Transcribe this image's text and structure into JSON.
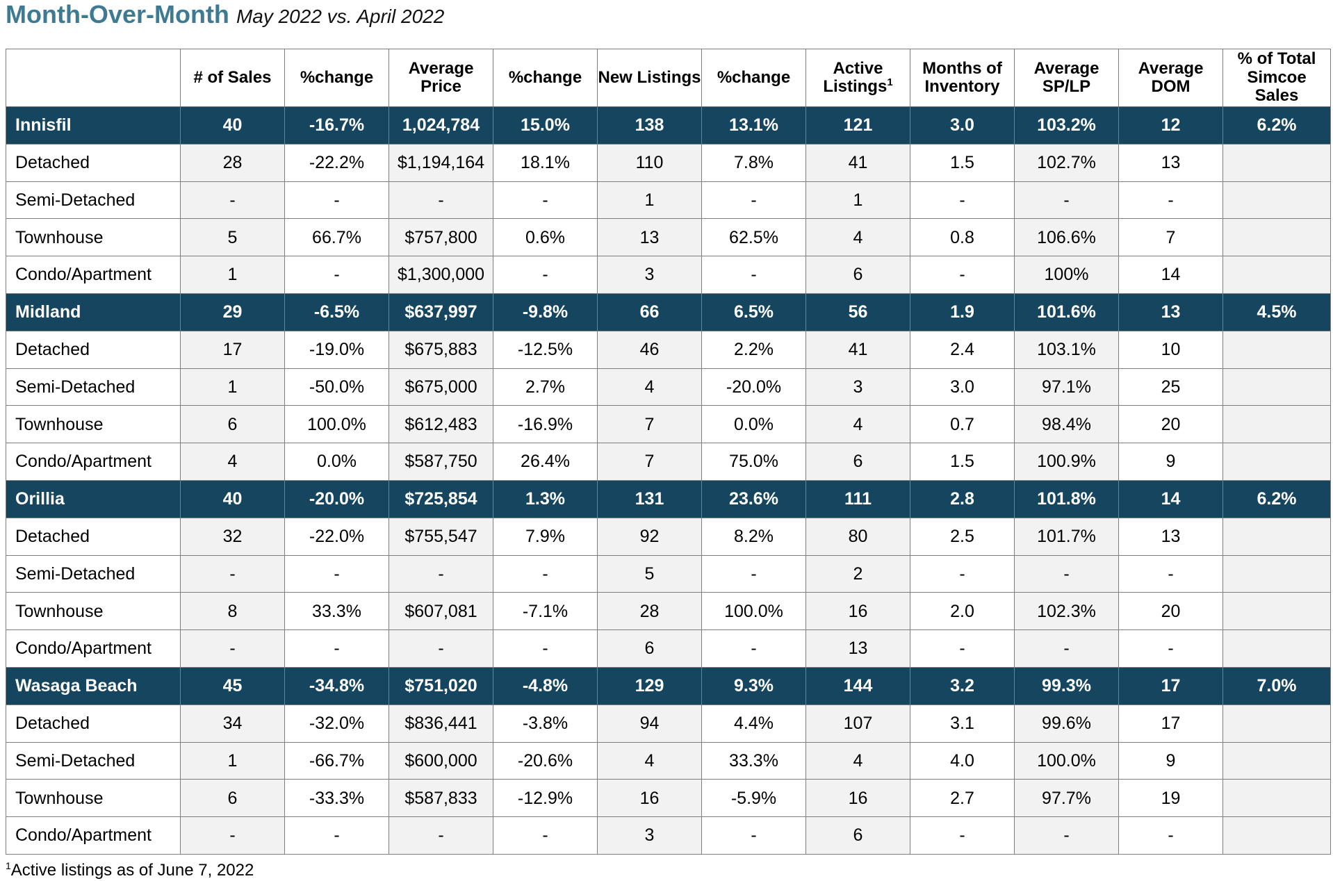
{
  "title": {
    "main": "Month-Over-Month",
    "sub": "May 2022 vs. April 2022"
  },
  "colors": {
    "title": "#3f7a93",
    "region_row_bg": "#16465f",
    "shaded_column_bg": "#f2f2f2"
  },
  "headers": [
    "",
    "# of Sales",
    "%change",
    "Average Price",
    "%change",
    "New Listings",
    "%change",
    "Active Listings",
    "Months of Inventory",
    "Average SP/LP",
    "Average DOM",
    "% of Total Simcoe Sales"
  ],
  "header_footnote_marker": "1",
  "regions": [
    {
      "summary": [
        "Innisfil",
        "40",
        "-16.7%",
        "1,024,784",
        "15.0%",
        "138",
        "13.1%",
        "121",
        "3.0",
        "103.2%",
        "12",
        "6.2%"
      ],
      "types": [
        [
          "Detached",
          "28",
          "-22.2%",
          "$1,194,164",
          "18.1%",
          "110",
          "7.8%",
          "41",
          "1.5",
          "102.7%",
          "13",
          ""
        ],
        [
          "Semi-Detached",
          "-",
          "-",
          "-",
          "-",
          "1",
          "-",
          "1",
          "-",
          "-",
          "-",
          ""
        ],
        [
          "Townhouse",
          "5",
          "66.7%",
          "$757,800",
          "0.6%",
          "13",
          "62.5%",
          "4",
          "0.8",
          "106.6%",
          "7",
          ""
        ],
        [
          "Condo/Apartment",
          "1",
          "-",
          "$1,300,000",
          "-",
          "3",
          "-",
          "6",
          "-",
          "100%",
          "14",
          ""
        ]
      ]
    },
    {
      "summary": [
        "Midland",
        "29",
        "-6.5%",
        "$637,997",
        "-9.8%",
        "66",
        "6.5%",
        "56",
        "1.9",
        "101.6%",
        "13",
        "4.5%"
      ],
      "types": [
        [
          "Detached",
          "17",
          "-19.0%",
          "$675,883",
          "-12.5%",
          "46",
          "2.2%",
          "41",
          "2.4",
          "103.1%",
          "10",
          ""
        ],
        [
          "Semi-Detached",
          "1",
          "-50.0%",
          "$675,000",
          "2.7%",
          "4",
          "-20.0%",
          "3",
          "3.0",
          "97.1%",
          "25",
          ""
        ],
        [
          "Townhouse",
          "6",
          "100.0%",
          "$612,483",
          "-16.9%",
          "7",
          "0.0%",
          "4",
          "0.7",
          "98.4%",
          "20",
          ""
        ],
        [
          "Condo/Apartment",
          "4",
          "0.0%",
          "$587,750",
          "26.4%",
          "7",
          "75.0%",
          "6",
          "1.5",
          "100.9%",
          "9",
          ""
        ]
      ]
    },
    {
      "summary": [
        "Orillia",
        "40",
        "-20.0%",
        "$725,854",
        "1.3%",
        "131",
        "23.6%",
        "111",
        "2.8",
        "101.8%",
        "14",
        "6.2%"
      ],
      "types": [
        [
          "Detached",
          "32",
          "-22.0%",
          "$755,547",
          "7.9%",
          "92",
          "8.2%",
          "80",
          "2.5",
          "101.7%",
          "13",
          ""
        ],
        [
          "Semi-Detached",
          "-",
          "-",
          "-",
          "-",
          "5",
          "-",
          "2",
          "-",
          "-",
          "-",
          ""
        ],
        [
          "Townhouse",
          "8",
          "33.3%",
          "$607,081",
          "-7.1%",
          "28",
          "100.0%",
          "16",
          "2.0",
          "102.3%",
          "20",
          ""
        ],
        [
          "Condo/Apartment",
          "-",
          "-",
          "-",
          "-",
          "6",
          "-",
          "13",
          "-",
          "-",
          "-",
          ""
        ]
      ]
    },
    {
      "summary": [
        "Wasaga Beach",
        "45",
        "-34.8%",
        "$751,020",
        "-4.8%",
        "129",
        "9.3%",
        "144",
        "3.2",
        "99.3%",
        "17",
        "7.0%"
      ],
      "types": [
        [
          "Detached",
          "34",
          "-32.0%",
          "$836,441",
          "-3.8%",
          "94",
          "4.4%",
          "107",
          "3.1",
          "99.6%",
          "17",
          ""
        ],
        [
          "Semi-Detached",
          "1",
          "-66.7%",
          "$600,000",
          "-20.6%",
          "4",
          "33.3%",
          "4",
          "4.0",
          "100.0%",
          "9",
          ""
        ],
        [
          "Townhouse",
          "6",
          "-33.3%",
          "$587,833",
          "-12.9%",
          "16",
          "-5.9%",
          "16",
          "2.7",
          "97.7%",
          "19",
          ""
        ],
        [
          "Condo/Apartment",
          "-",
          "-",
          "-",
          "-",
          "3",
          "-",
          "6",
          "-",
          "-",
          "-",
          ""
        ]
      ]
    }
  ],
  "footnote": {
    "marker": "1",
    "text": "Active listings as of June 7, 2022"
  }
}
